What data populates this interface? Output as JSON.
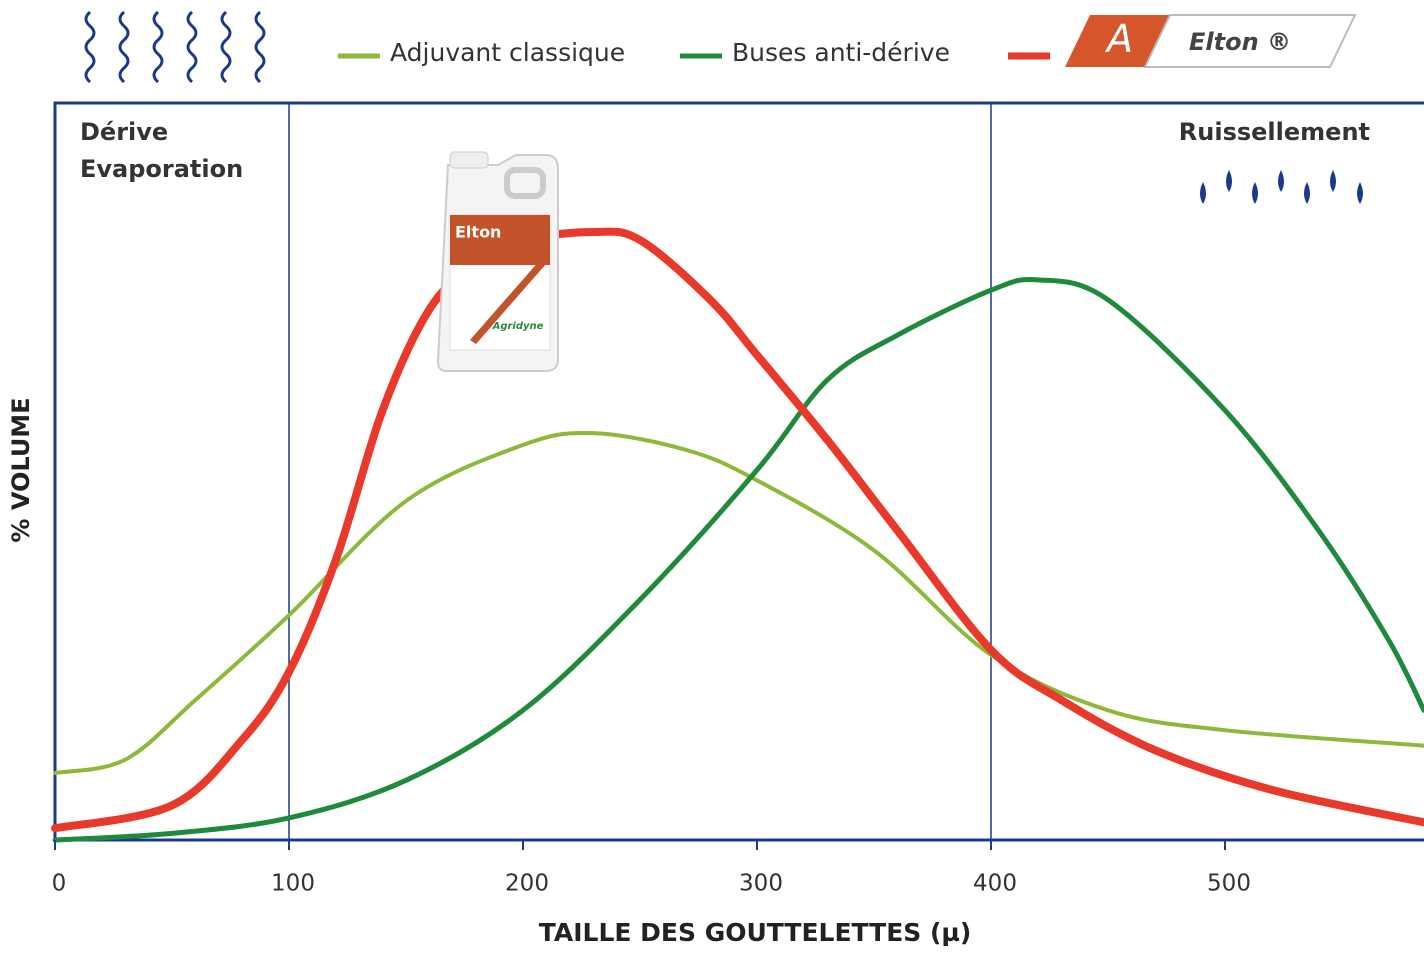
{
  "chart_data": {
    "type": "line",
    "x_label": "TAILLE DES GOUTTELETTES (µ)",
    "y_label": "% VOLUME",
    "xlim": [
      0,
      585
    ],
    "ylim": [
      0,
      100
    ],
    "xticks": [
      0,
      100,
      200,
      300,
      400,
      500
    ],
    "boundaries": [
      100,
      400
    ],
    "zones": {
      "left": [
        "Dérive",
        "Evaporation"
      ],
      "right": "Ruissellement"
    },
    "product": {
      "brand": "Elton",
      "maker": "Agridyne",
      "logo_letter": "A"
    },
    "series": [
      {
        "name": "Adjuvant classique",
        "color": "#8cb93a",
        "x": [
          0,
          30,
          60,
          100,
          150,
          200,
          230,
          270,
          300,
          350,
          400,
          450,
          500,
          585
        ],
        "values": [
          9.1,
          10.9,
          19,
          30.5,
          46,
          53.6,
          55.2,
          52.9,
          48.8,
          39.3,
          25.1,
          17.6,
          14.9,
          12.8
        ]
      },
      {
        "name": "Buses anti-dérive",
        "color": "#1f8a3a",
        "x": [
          0,
          50,
          100,
          150,
          200,
          250,
          300,
          330,
          360,
          400,
          420,
          450,
          500,
          540,
          570,
          585
        ],
        "values": [
          0,
          0.9,
          3,
          8.1,
          17.6,
          32.6,
          50.2,
          62.4,
          68.5,
          74.6,
          76,
          73.3,
          58.3,
          42,
          27.1,
          17.6
        ]
      },
      {
        "name": "Elton ®",
        "color": "#e8392a",
        "x": [
          0,
          50,
          80,
          100,
          120,
          140,
          160,
          180,
          200,
          230,
          250,
          280,
          300,
          330,
          360,
          400,
          430,
          470,
          520,
          585
        ],
        "values": [
          1.6,
          4.7,
          13.6,
          22.8,
          38,
          58.3,
          72,
          78.4,
          81.4,
          82.5,
          81.4,
          73.3,
          65.8,
          54.3,
          42,
          25.8,
          19,
          12.2,
          6.8,
          2.4
        ]
      }
    ]
  }
}
